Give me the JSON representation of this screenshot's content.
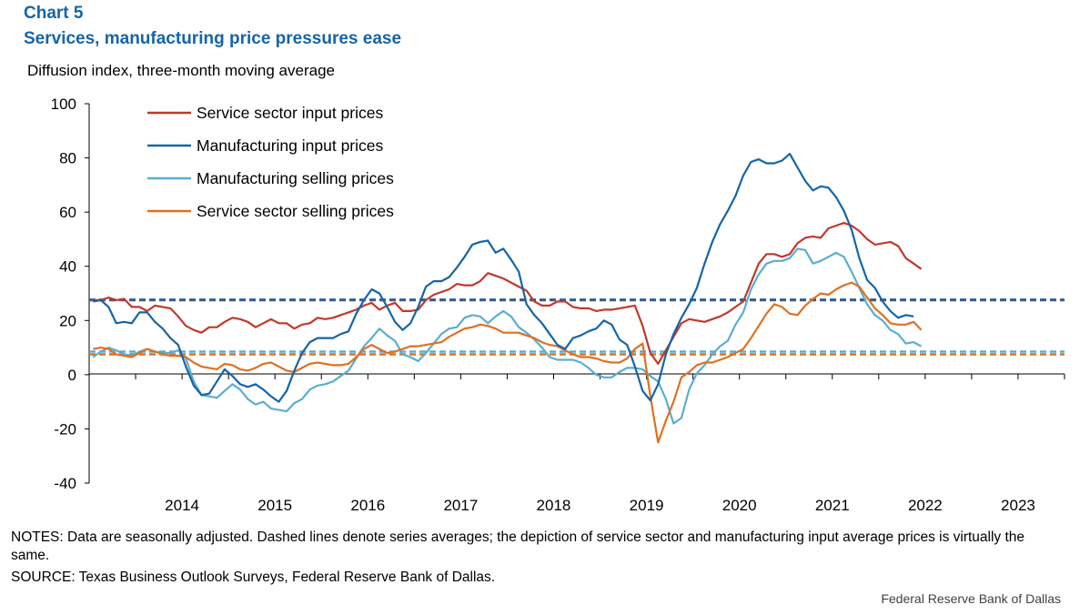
{
  "header": {
    "chart_number": "Chart 5",
    "title": "Services, manufacturing price pressures ease",
    "units": "Diffusion index, three-month moving average"
  },
  "footer": {
    "notes": "NOTES: Data are seasonally adjusted. Dashed lines denote series averages; the depiction of service sector and manufacturing input average prices is virtually the same.",
    "source": "SOURCE: Texas Business Outlook Surveys, Federal Reserve Bank of Dallas.",
    "credit": "Federal Reserve Bank of Dallas"
  },
  "chart_data": {
    "type": "line",
    "title": "Services, manufacturing price pressures ease",
    "ylabel": "Diffusion index, three-month moving average",
    "ylim": [
      -40,
      100
    ],
    "yticks": [
      -40,
      -20,
      0,
      20,
      40,
      60,
      80,
      100
    ],
    "xticks": [
      "2014",
      "2015",
      "2016",
      "2017",
      "2018",
      "2019",
      "2020",
      "2021",
      "2022",
      "2023"
    ],
    "x_start": "2013-07",
    "x_end": "2023-12",
    "x_step": "month",
    "legend_position": "top-left",
    "series": [
      {
        "name": "Service sector input prices",
        "color": "#c0392b",
        "average": 27.5,
        "values": [
          27.5,
          27.5,
          28.5,
          27.5,
          28.0,
          25.0,
          25.0,
          23.5,
          25.5,
          25.0,
          24.5,
          21.5,
          18.0,
          16.5,
          15.5,
          17.5,
          17.5,
          19.5,
          21.0,
          20.5,
          19.5,
          17.5,
          19.0,
          20.5,
          19.0,
          19.0,
          17.0,
          18.5,
          19.0,
          21.0,
          20.5,
          21.0,
          22.0,
          23.0,
          24.0,
          25.5,
          26.5,
          24.0,
          25.5,
          26.5,
          23.5,
          23.5,
          24.0,
          27.5,
          29.5,
          30.5,
          31.5,
          33.5,
          33.0,
          33.0,
          34.5,
          37.5,
          36.5,
          35.5,
          34.0,
          32.5,
          31.0,
          27.0,
          25.5,
          25.5,
          27.0,
          27.0,
          25.0,
          24.5,
          24.5,
          23.5,
          24.0,
          24.0,
          24.5,
          25.0,
          25.5,
          18.0,
          8.0,
          4.0,
          9.0,
          14.0,
          19.0,
          20.5,
          20.0,
          19.5,
          20.5,
          21.5,
          23.0,
          25.0,
          27.0,
          34.0,
          41.0,
          44.5,
          44.5,
          43.5,
          44.5,
          48.5,
          50.5,
          51.0,
          50.5,
          54.0,
          55.0,
          56.0,
          55.0,
          53.0,
          50.0,
          48.0,
          48.5,
          49.0,
          47.5,
          43.0,
          41.0,
          39.0
        ]
      },
      {
        "name": "Manufacturing input prices",
        "color": "#1565a8",
        "average": 27.7,
        "values": [
          27.0,
          27.5,
          25.0,
          19.0,
          19.5,
          19.0,
          23.0,
          23.0,
          19.5,
          17.0,
          13.5,
          11.0,
          3.0,
          -4.0,
          -7.5,
          -7.0,
          -2.5,
          2.0,
          -0.5,
          -3.5,
          -4.5,
          -3.5,
          -5.5,
          -8.0,
          -10.0,
          -6.0,
          1.5,
          8.0,
          12.0,
          13.5,
          13.5,
          13.5,
          15.0,
          16.0,
          22.5,
          27.5,
          31.5,
          30.0,
          25.0,
          19.5,
          16.5,
          19.0,
          25.0,
          32.5,
          34.5,
          34.5,
          36.0,
          39.5,
          43.5,
          48.0,
          49.0,
          49.5,
          45.0,
          46.5,
          42.5,
          38.0,
          26.0,
          22.0,
          19.0,
          15.0,
          11.0,
          9.5,
          13.5,
          14.5,
          16.0,
          17.0,
          20.0,
          18.5,
          13.0,
          11.0,
          3.0,
          -6.0,
          -9.5,
          -3.5,
          7.5,
          15.0,
          21.0,
          26.0,
          32.0,
          41.0,
          49.0,
          55.5,
          60.5,
          66.0,
          73.5,
          78.5,
          79.5,
          78.0,
          78.0,
          79.0,
          81.5,
          76.5,
          71.5,
          68.0,
          69.5,
          69.0,
          65.5,
          60.5,
          53.5,
          43.0,
          35.0,
          32.0,
          27.0,
          23.5,
          21.0,
          22.0,
          21.5
        ]
      },
      {
        "name": "Manufacturing selling prices",
        "color": "#5aaed0",
        "average": 8.5,
        "values": [
          6.5,
          8.5,
          10.0,
          9.0,
          7.5,
          7.0,
          8.5,
          9.5,
          8.5,
          8.0,
          8.0,
          9.0,
          6.0,
          -2.5,
          -7.5,
          -8.0,
          -8.5,
          -6.0,
          -3.5,
          -5.5,
          -9.0,
          -11.0,
          -10.0,
          -12.5,
          -13.0,
          -13.5,
          -10.5,
          -9.0,
          -5.5,
          -4.0,
          -3.5,
          -2.5,
          -0.5,
          1.5,
          6.0,
          10.5,
          13.5,
          17.0,
          14.5,
          12.5,
          7.5,
          6.5,
          5.0,
          8.0,
          11.5,
          15.0,
          17.0,
          17.5,
          21.0,
          22.0,
          21.5,
          19.0,
          21.5,
          23.5,
          21.5,
          17.5,
          15.5,
          13.0,
          10.0,
          6.5,
          5.5,
          5.5,
          5.5,
          4.5,
          2.5,
          0.0,
          -1.0,
          -1.0,
          1.0,
          2.5,
          2.5,
          2.0,
          -0.5,
          -2.5,
          -9.0,
          -18.0,
          -16.0,
          -5.5,
          0.5,
          3.5,
          7.5,
          10.5,
          12.5,
          18.5,
          23.0,
          31.5,
          37.0,
          41.0,
          42.0,
          42.0,
          43.0,
          46.5,
          46.0,
          41.0,
          42.0,
          43.5,
          45.0,
          43.5,
          38.0,
          32.0,
          26.0,
          22.0,
          20.0,
          16.5,
          15.0,
          11.5,
          12.0,
          10.5
        ]
      },
      {
        "name": "Service sector selling prices",
        "color": "#e07020",
        "average": 7.5,
        "values": [
          9.5,
          10.0,
          9.5,
          7.5,
          7.0,
          6.5,
          8.0,
          9.5,
          8.5,
          7.5,
          7.0,
          7.0,
          6.5,
          4.5,
          3.0,
          2.5,
          2.0,
          4.0,
          3.5,
          2.0,
          1.5,
          2.5,
          4.0,
          4.5,
          3.0,
          1.5,
          1.0,
          2.5,
          4.0,
          4.5,
          4.0,
          3.5,
          3.5,
          4.0,
          6.5,
          9.5,
          11.0,
          9.5,
          8.0,
          8.5,
          9.5,
          10.5,
          10.5,
          11.0,
          11.5,
          12.0,
          14.0,
          15.5,
          17.0,
          17.5,
          18.5,
          18.0,
          17.0,
          15.5,
          15.5,
          15.5,
          14.5,
          13.5,
          12.0,
          11.0,
          10.5,
          9.0,
          7.5,
          6.5,
          6.5,
          6.0,
          5.0,
          4.5,
          4.5,
          6.0,
          9.5,
          11.5,
          -8.0,
          -25.0,
          -17.0,
          -10.0,
          -1.0,
          1.0,
          3.5,
          4.5,
          4.5,
          5.5,
          6.5,
          8.0,
          9.5,
          13.5,
          18.0,
          22.5,
          26.0,
          25.0,
          22.5,
          22.0,
          25.5,
          28.0,
          30.0,
          29.5,
          31.5,
          33.0,
          34.0,
          32.5,
          28.5,
          24.5,
          22.0,
          19.0,
          18.5,
          18.5,
          19.5,
          16.5
        ]
      }
    ]
  }
}
